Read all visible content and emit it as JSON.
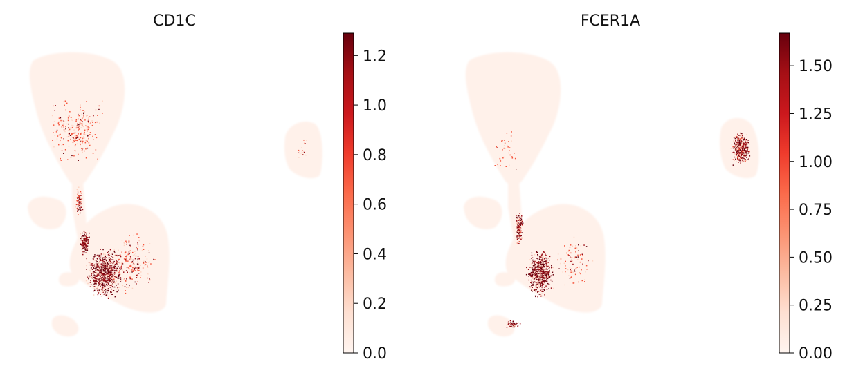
{
  "chart_data": [
    {
      "type": "scatter",
      "title": "CD1C",
      "xlabel": "",
      "ylabel": "",
      "grid": false,
      "axes_visible": false,
      "colormap": "Reds",
      "colorbar": {
        "vmin": 0.0,
        "vmax": 1.29,
        "ticks": [
          0.0,
          0.2,
          0.4,
          0.6,
          0.8,
          1.0,
          1.2
        ],
        "tick_labels": [
          "0.0",
          "0.2",
          "0.4",
          "0.6",
          "0.8",
          "1.0",
          "1.2"
        ]
      }
    },
    {
      "type": "scatter",
      "title": "FCER1A",
      "xlabel": "",
      "ylabel": "",
      "grid": false,
      "axes_visible": false,
      "colormap": "Reds",
      "colorbar": {
        "vmin": 0.0,
        "vmax": 1.67,
        "ticks": [
          0.0,
          0.25,
          0.5,
          0.75,
          1.0,
          1.25,
          1.5
        ],
        "tick_labels": [
          "0.00",
          "0.25",
          "0.50",
          "0.75",
          "1.00",
          "1.25",
          "1.50"
        ]
      }
    }
  ],
  "colors": {
    "background_cell": "#fff5f0",
    "low": "#fdd4c2",
    "mid": "#f6553c",
    "high": "#9b0d15",
    "max": "#67000d"
  }
}
